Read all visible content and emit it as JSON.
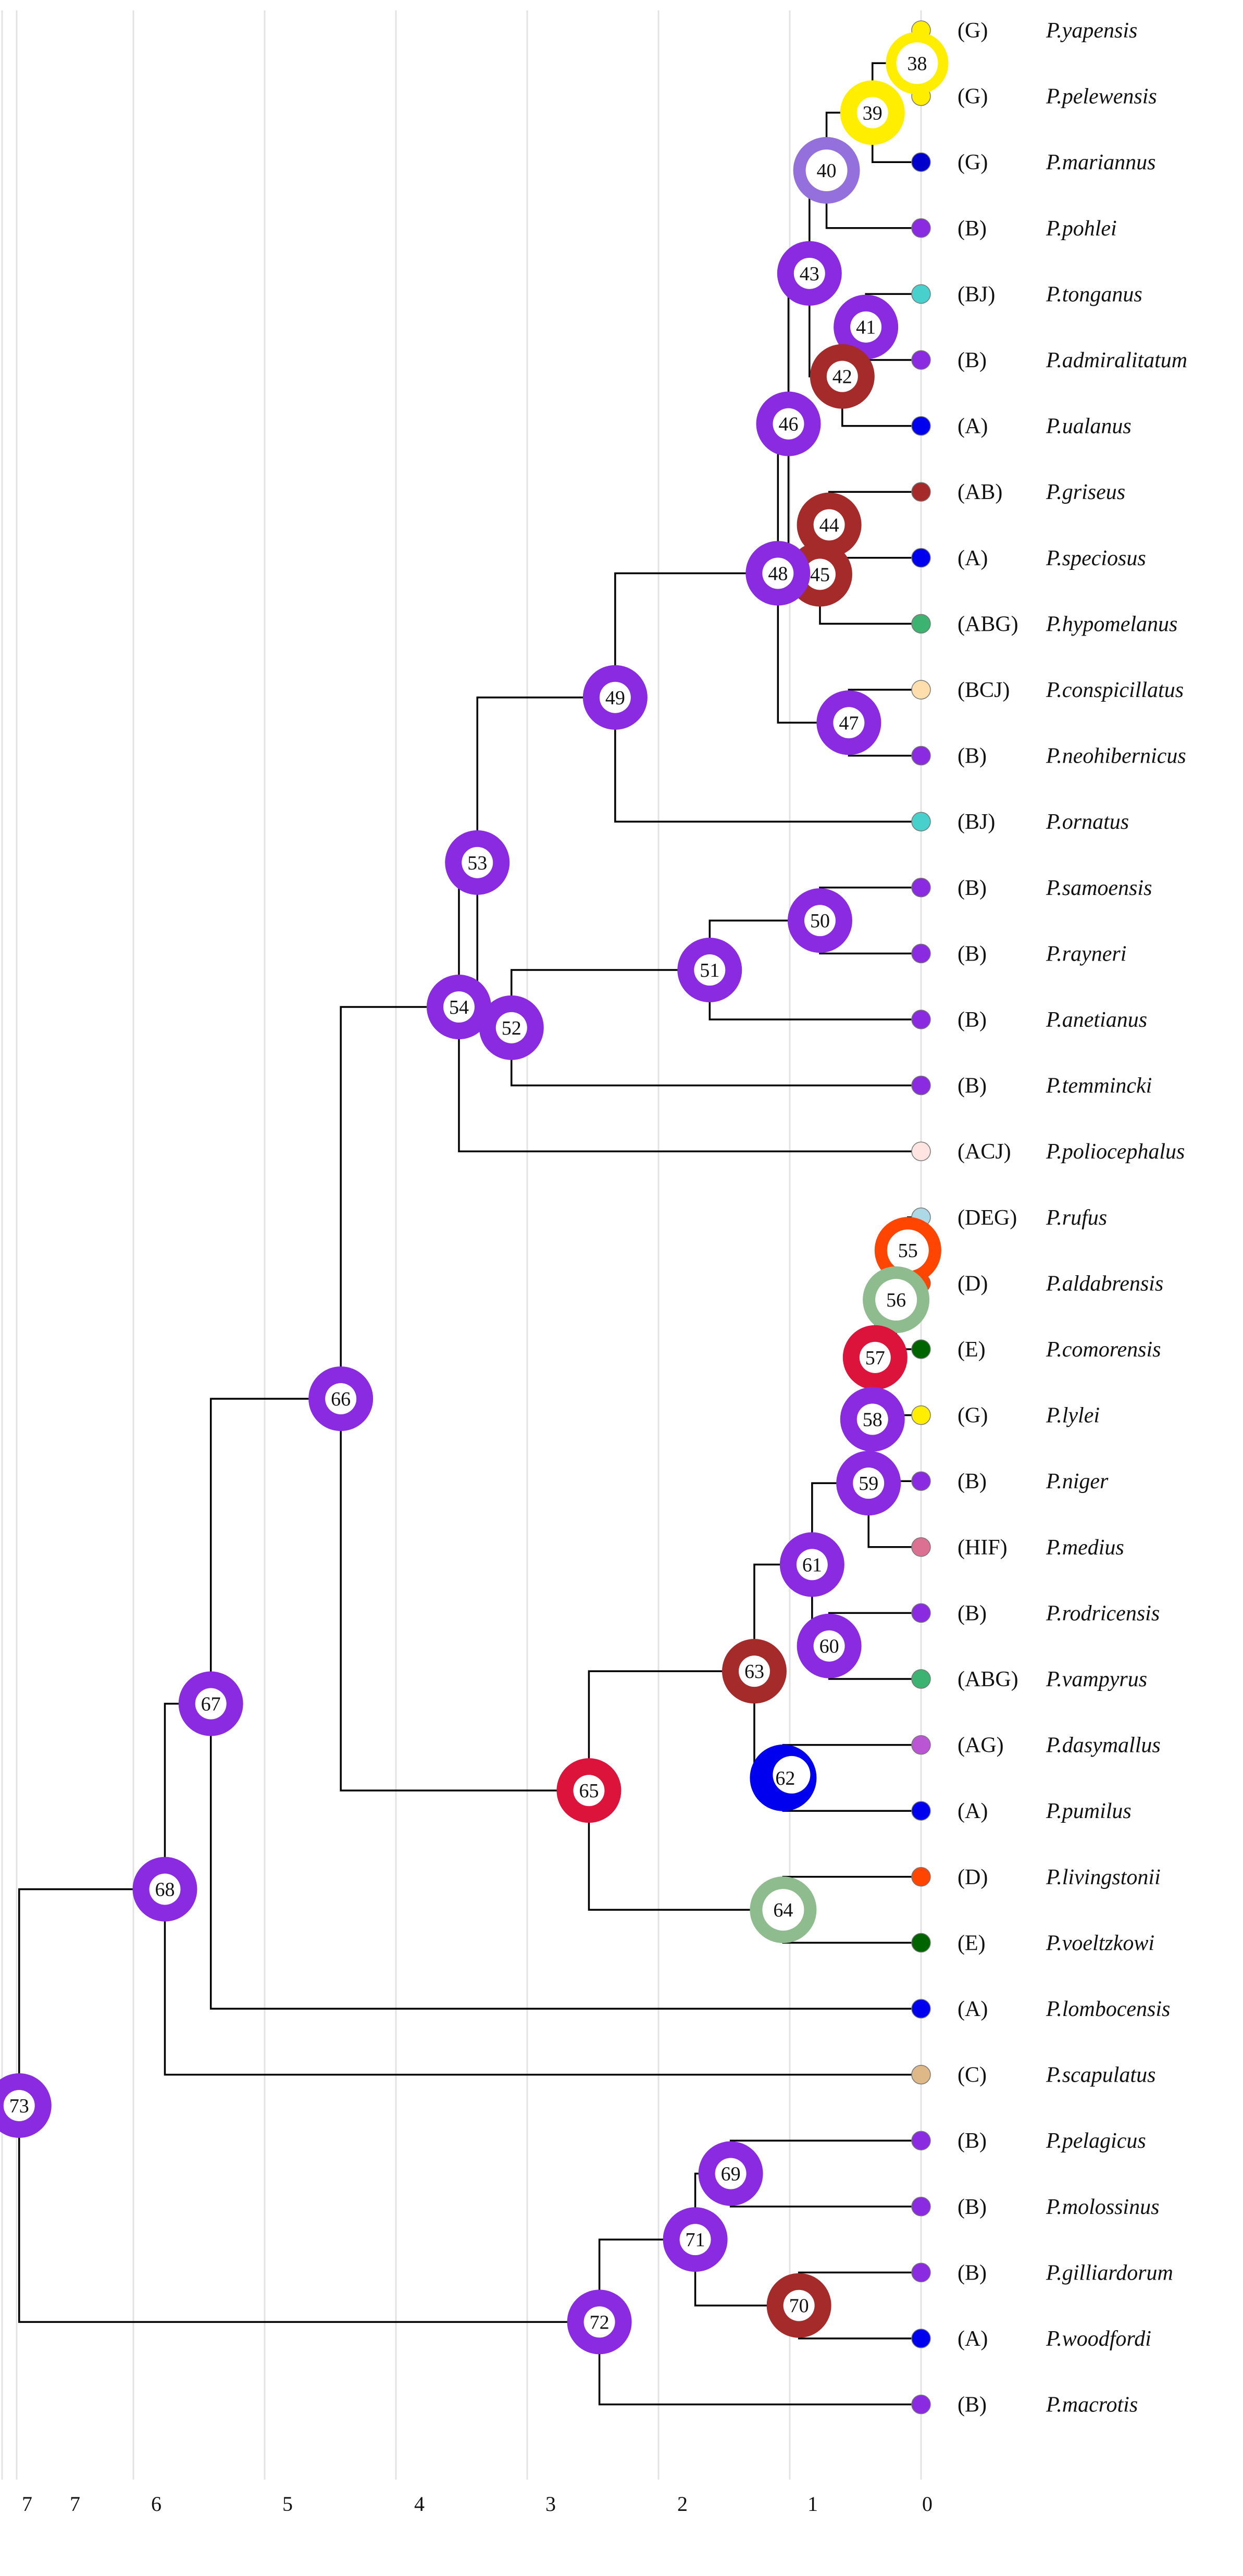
{
  "axis": {
    "ticks": [
      "7",
      "7",
      "6",
      "5",
      "4",
      "3",
      "2",
      "1",
      "0"
    ]
  },
  "tips": [
    {
      "area": "(G)",
      "name": "P.yapensis",
      "color": "#ffee00"
    },
    {
      "area": "(G)",
      "name": "P.pelewensis",
      "color": "#ffee00"
    },
    {
      "area": "(G)",
      "name": "P.mariannus",
      "color": "#0000cc"
    },
    {
      "area": "(B)",
      "name": "P.pohlei",
      "color": "#8a2be2"
    },
    {
      "area": "(BJ)",
      "name": "P.tonganus",
      "color": "#48d1cc"
    },
    {
      "area": "(B)",
      "name": "P.admiralitatum",
      "color": "#8a2be2"
    },
    {
      "area": "(A)",
      "name": "P.ualanus",
      "color": "#0000ee"
    },
    {
      "area": "(AB)",
      "name": "P.griseus",
      "color": "#a52a2a"
    },
    {
      "area": "(A)",
      "name": "P.speciosus",
      "color": "#0000ee"
    },
    {
      "area": "(ABG)",
      "name": "P.hypomelanus",
      "color": "#3cb371"
    },
    {
      "area": "(BCJ)",
      "name": "P.conspicillatus",
      "color": "#ffdead"
    },
    {
      "area": "(B)",
      "name": "P.neohibernicus",
      "color": "#8a2be2"
    },
    {
      "area": "(BJ)",
      "name": "P.ornatus",
      "color": "#48d1cc"
    },
    {
      "area": "(B)",
      "name": "P.samoensis",
      "color": "#8a2be2"
    },
    {
      "area": "(B)",
      "name": "P.rayneri",
      "color": "#8a2be2"
    },
    {
      "area": "(B)",
      "name": "P.anetianus",
      "color": "#8a2be2"
    },
    {
      "area": "(B)",
      "name": "P.temmincki",
      "color": "#8a2be2"
    },
    {
      "area": "(ACJ)",
      "name": "P.poliocephalus",
      "color": "#ffe4e1"
    },
    {
      "area": "(DEG)",
      "name": "P.rufus",
      "color": "#add8e6"
    },
    {
      "area": "(D)",
      "name": "P.aldabrensis",
      "color": "#ff4500"
    },
    {
      "area": "(E)",
      "name": "P.comorensis",
      "color": "#006400"
    },
    {
      "area": "(G)",
      "name": "P.lylei",
      "color": "#ffee00"
    },
    {
      "area": "(B)",
      "name": "P.niger",
      "color": "#8a2be2"
    },
    {
      "area": "(HIF)",
      "name": "P.medius",
      "color": "#db7093"
    },
    {
      "area": "(B)",
      "name": "P.rodricensis",
      "color": "#8a2be2"
    },
    {
      "area": "(ABG)",
      "name": "P.vampyrus",
      "color": "#3cb371"
    },
    {
      "area": "(AG)",
      "name": "P.dasymallus",
      "color": "#ba55d3"
    },
    {
      "area": "(A)",
      "name": "P.pumilus",
      "color": "#0000ee"
    },
    {
      "area": "(D)",
      "name": "P.livingstonii",
      "color": "#ff4500"
    },
    {
      "area": "(E)",
      "name": "P.voeltzkowi",
      "color": "#006400"
    },
    {
      "area": "(A)",
      "name": "P.lombocensis",
      "color": "#0000ee"
    },
    {
      "area": "(C)",
      "name": "P.scapulatus",
      "color": "#deb887"
    },
    {
      "area": "(B)",
      "name": "P.pelagicus",
      "color": "#8a2be2"
    },
    {
      "area": "(B)",
      "name": "P.molossinus",
      "color": "#8a2be2"
    },
    {
      "area": "(B)",
      "name": "P.gilliardorum",
      "color": "#8a2be2"
    },
    {
      "area": "(A)",
      "name": "P.woodfordi",
      "color": "#0000ee"
    },
    {
      "area": "(B)",
      "name": "P.macrotis",
      "color": "#8a2be2"
    }
  ],
  "nodes": [
    {
      "id": "38",
      "age": 0.03,
      "color": "#ffee00",
      "ring": "thin"
    },
    {
      "id": "39",
      "age": 0.37,
      "color": "#ffee00",
      "ring": "thick"
    },
    {
      "id": "40",
      "age": 0.72,
      "color": "#9370db",
      "ring": "thin"
    },
    {
      "id": "41",
      "age": 0.42,
      "color": "#8a2be2",
      "ring": "thick"
    },
    {
      "id": "42",
      "age": 0.6,
      "color": "#a52a2a",
      "ring": "thick"
    },
    {
      "id": "43",
      "age": 0.85,
      "color": "#8a2be2",
      "ring": "thick"
    },
    {
      "id": "44",
      "age": 0.7,
      "color": "#a52a2a",
      "ring": "thick"
    },
    {
      "id": "45",
      "age": 0.77,
      "color": "#a52a2a",
      "ring": "thick"
    },
    {
      "id": "46",
      "age": 1.01,
      "color": "#8a2be2",
      "ring": "thick"
    },
    {
      "id": "47",
      "age": 0.55,
      "color": "#8a2be2",
      "ring": "thick"
    },
    {
      "id": "48",
      "age": 1.09,
      "color": "#8a2be2",
      "ring": "thick"
    },
    {
      "id": "49",
      "age": 2.33,
      "color": "#8a2be2",
      "ring": "thick"
    },
    {
      "id": "50",
      "age": 0.77,
      "color": "#8a2be2",
      "ring": "thick"
    },
    {
      "id": "51",
      "age": 1.61,
      "color": "#8a2be2",
      "ring": "thick"
    },
    {
      "id": "52",
      "age": 3.12,
      "color": "#8a2be2",
      "ring": "thick"
    },
    {
      "id": "53",
      "age": 3.38,
      "color": "#8a2be2",
      "ring": "thick"
    },
    {
      "id": "54",
      "age": 3.52,
      "color": "#8a2be2",
      "ring": "thick"
    },
    {
      "id": "55",
      "age": 0.1,
      "color": "#ff4500",
      "ring": "thin"
    },
    {
      "id": "56",
      "age": 0.19,
      "color": "#8fbc8f",
      "ring": "thin"
    },
    {
      "id": "57",
      "age": 0.35,
      "color": "#dc143c",
      "ring": "thick"
    },
    {
      "id": "58",
      "age": 0.37,
      "color": "#8a2be2",
      "ring": "thick"
    },
    {
      "id": "59",
      "age": 0.4,
      "color": "#8a2be2",
      "ring": "thick"
    },
    {
      "id": "60",
      "age": 0.7,
      "color": "#8a2be2",
      "ring": "thick"
    },
    {
      "id": "61",
      "age": 0.83,
      "color": "#8a2be2",
      "ring": "thick"
    },
    {
      "id": "62",
      "age": 1.05,
      "color": "#0000ee",
      "ring": "crescent"
    },
    {
      "id": "63",
      "age": 1.27,
      "color": "#a52a2a",
      "ring": "thick"
    },
    {
      "id": "64",
      "age": 1.05,
      "color": "#8fbc8f",
      "ring": "thin"
    },
    {
      "id": "65",
      "age": 2.53,
      "color": "#dc143c",
      "ring": "thick"
    },
    {
      "id": "66",
      "age": 4.42,
      "color": "#8a2be2",
      "ring": "thick"
    },
    {
      "id": "67",
      "age": 5.41,
      "color": "#8a2be2",
      "ring": "thick"
    },
    {
      "id": "68",
      "age": 5.76,
      "color": "#8a2be2",
      "ring": "thick"
    },
    {
      "id": "69",
      "age": 1.45,
      "color": "#8a2be2",
      "ring": "thick"
    },
    {
      "id": "70",
      "age": 0.93,
      "color": "#a52a2a",
      "ring": "thick"
    },
    {
      "id": "71",
      "age": 1.72,
      "color": "#8a2be2",
      "ring": "thick"
    },
    {
      "id": "72",
      "age": 2.45,
      "color": "#8a2be2",
      "ring": "thick"
    },
    {
      "id": "73",
      "age": 6.87,
      "color": "#8a2be2",
      "ring": "thick"
    }
  ]
}
